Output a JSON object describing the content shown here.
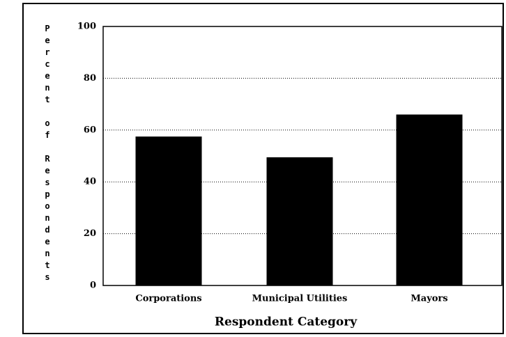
{
  "chart_data": {
    "type": "bar",
    "ylabel": "Percent of Respondents",
    "xlabel": "Respondent Category",
    "categories": [
      "Corporations",
      "Municipal Utilities",
      "Mayors"
    ],
    "values": [
      57.5,
      49.5,
      66
    ],
    "color": "#000000",
    "ylim": [
      0,
      100
    ],
    "yticks": [
      0,
      20,
      40,
      60,
      80,
      100
    ],
    "grid": true
  }
}
